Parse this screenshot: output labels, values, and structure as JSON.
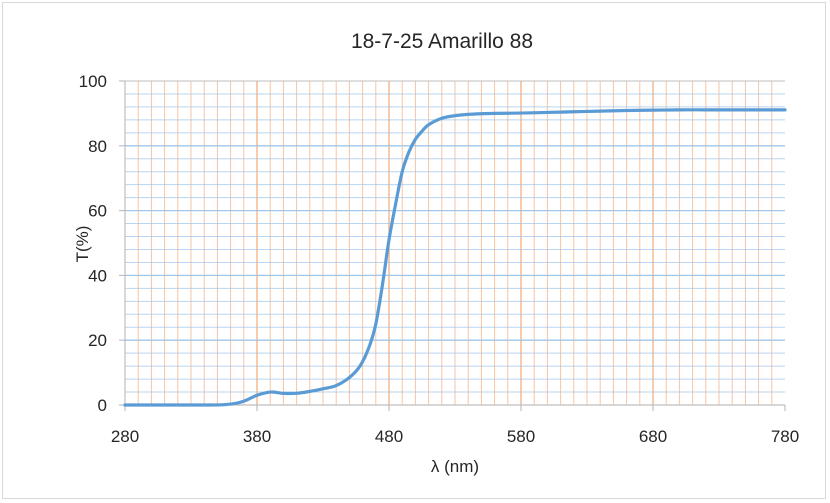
{
  "chart_data": {
    "type": "line",
    "title": "18-7-25 Amarillo 88",
    "xlabel": "λ (nm)",
    "ylabel": "T(%)",
    "xlim": [
      280,
      780
    ],
    "ylim": [
      0,
      100
    ],
    "xticks": [
      280,
      380,
      480,
      580,
      680,
      780
    ],
    "yticks": [
      0,
      20,
      40,
      60,
      80,
      100
    ],
    "grid": true,
    "legend": "none",
    "colors": {
      "series": "#5b9bd5",
      "vgrid": "#f4b183",
      "hgrid": "#9dc3e6",
      "axis": "#bfbfbf"
    },
    "series": [
      {
        "x": [
          280,
          300,
          320,
          340,
          355,
          365,
          372,
          380,
          390,
          400,
          410,
          420,
          430,
          440,
          450,
          458,
          465,
          470,
          475,
          480,
          485,
          490,
          495,
          500,
          505,
          510,
          520,
          530,
          540,
          550,
          560,
          580,
          600,
          620,
          640,
          660,
          680,
          700,
          720,
          740,
          760,
          780
        ],
        "y": [
          0,
          0,
          0,
          0,
          0.1,
          0.6,
          1.5,
          3,
          4,
          3.6,
          3.6,
          4.2,
          5,
          6,
          8.5,
          12,
          18,
          25,
          37,
          51,
          62,
          72,
          78,
          82,
          84.5,
          86.5,
          88.5,
          89.3,
          89.7,
          89.9,
          90,
          90.1,
          90.3,
          90.5,
          90.7,
          90.9,
          91,
          91.1,
          91.1,
          91.1,
          91.1,
          91.1
        ]
      }
    ]
  }
}
